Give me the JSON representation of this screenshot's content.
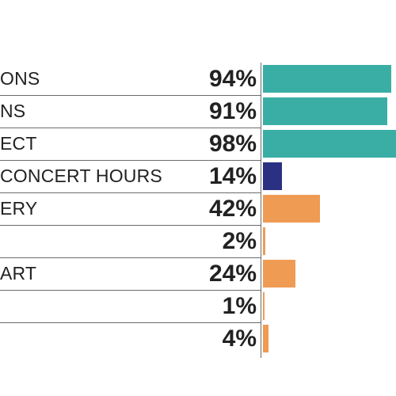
{
  "chart_data": {
    "type": "bar",
    "orientation": "horizontal",
    "categories": [
      "ONS",
      "NS",
      "ECT",
      "CONCERT HOURS",
      "ERY",
      "",
      "ART",
      "",
      ""
    ],
    "values": [
      94,
      91,
      98,
      14,
      42,
      2,
      24,
      1,
      4
    ],
    "value_labels": [
      "94%",
      "91%",
      "98%",
      "14%",
      "42%",
      "2%",
      "24%",
      "1%",
      "4%"
    ],
    "bar_colors": [
      "#3aaea5",
      "#3aaea5",
      "#3aaea5",
      "#2a3183",
      "#ef9b54",
      "#ef9b54",
      "#ef9b54",
      "#ef9b54",
      "#ef9b54"
    ],
    "xlim": [
      0,
      100
    ],
    "title": "",
    "xlabel": "",
    "ylabel": "",
    "grid": false,
    "legend": "none"
  }
}
